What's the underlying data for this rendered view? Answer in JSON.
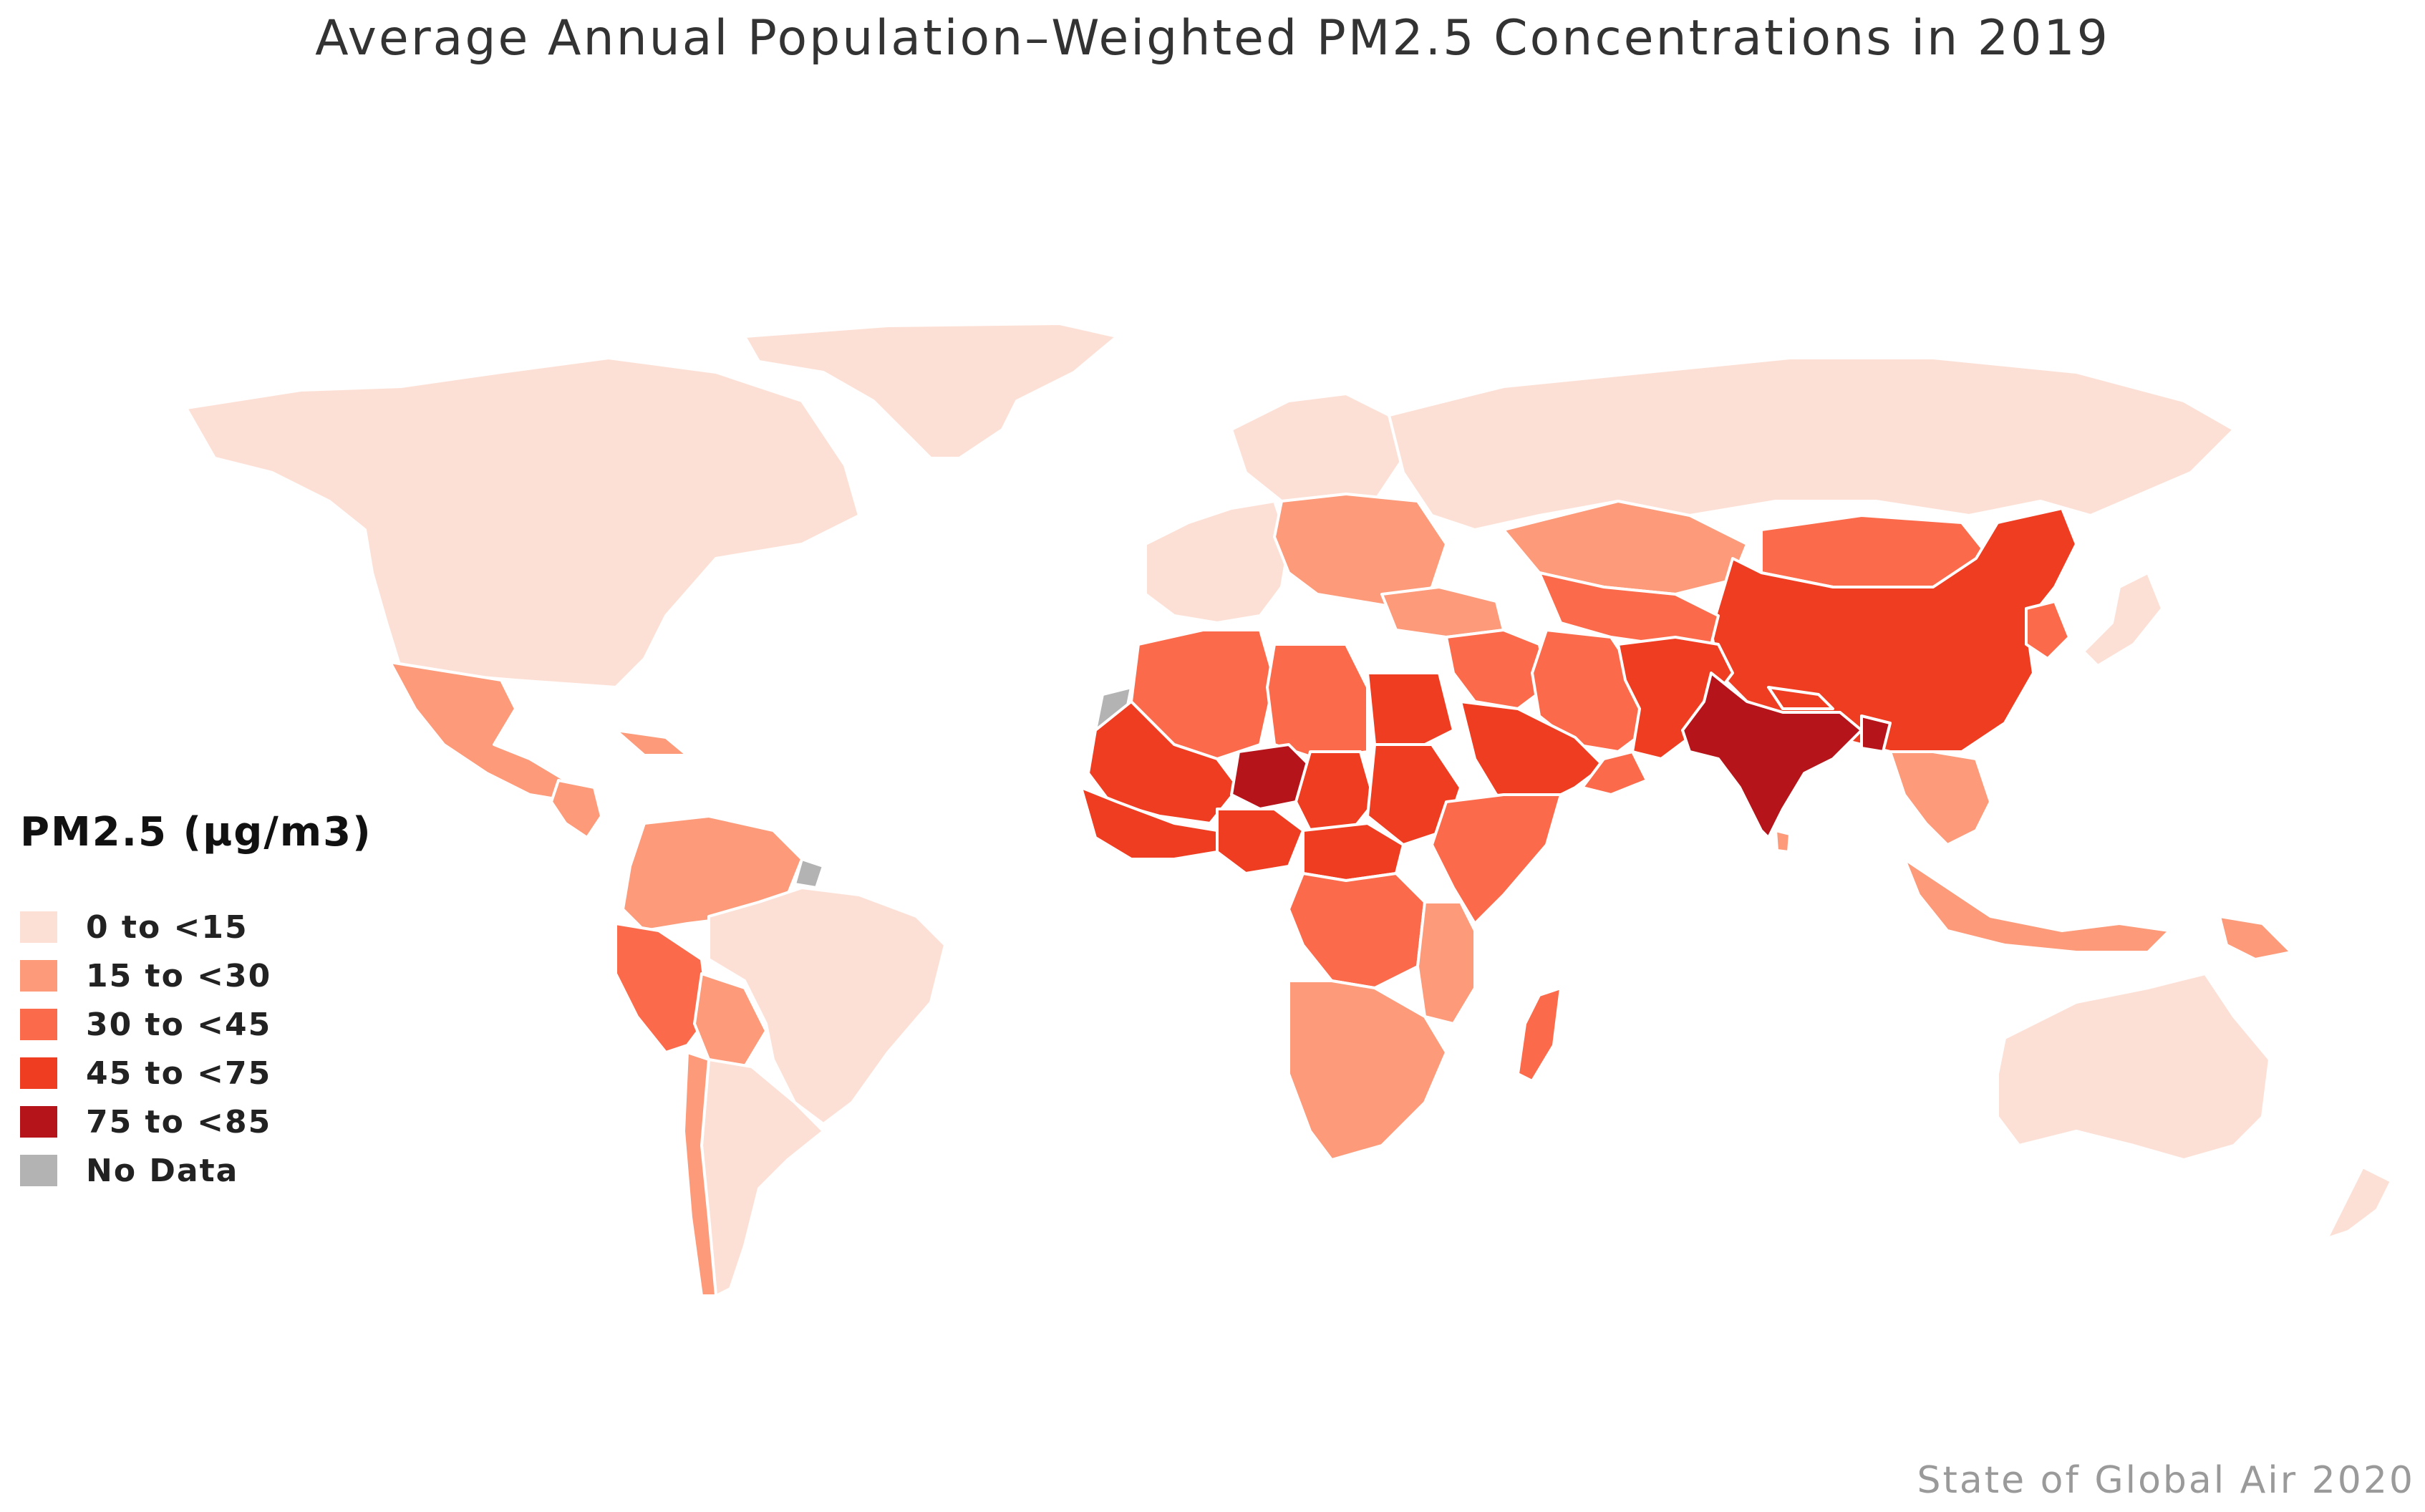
{
  "title": "Average Annual Population–Weighted PM2.5 Concentrations in 2019",
  "legend": {
    "title": "PM2.5 (µg/m3)",
    "items": [
      {
        "label": "0 to <15",
        "color": "#fde0d5"
      },
      {
        "label": "15 to <30",
        "color": "#fc9a7a"
      },
      {
        "label": "30 to <45",
        "color": "#fb6b4b"
      },
      {
        "label": "45 to <75",
        "color": "#ef3d22"
      },
      {
        "label": "75 to <85",
        "color": "#b5151a"
      },
      {
        "label": "No Data",
        "color": "#b3b3b3"
      }
    ]
  },
  "credit": "State of Global Air 2020",
  "map_regions": [
    {
      "name": "greenland",
      "class": "0 to <15"
    },
    {
      "name": "north-america",
      "class": "0 to <15"
    },
    {
      "name": "mexico",
      "class": "15 to <30"
    },
    {
      "name": "central-america",
      "class": "15 to <30"
    },
    {
      "name": "caribbean",
      "class": "15 to <30"
    },
    {
      "name": "northern-south-america",
      "class": "15 to <30"
    },
    {
      "name": "french-guiana",
      "class": "No Data"
    },
    {
      "name": "peru",
      "class": "30 to <45"
    },
    {
      "name": "bolivia",
      "class": "15 to <30"
    },
    {
      "name": "brazil",
      "class": "0 to <15"
    },
    {
      "name": "southern-cone",
      "class": "0 to <15"
    },
    {
      "name": "chile",
      "class": "15 to <30"
    },
    {
      "name": "western-europe",
      "class": "0 to <15"
    },
    {
      "name": "scandinavia",
      "class": "0 to <15"
    },
    {
      "name": "eastern-europe",
      "class": "15 to <30"
    },
    {
      "name": "russia",
      "class": "0 to <15"
    },
    {
      "name": "turkey",
      "class": "15 to <30"
    },
    {
      "name": "kazakhstan",
      "class": "15 to <30"
    },
    {
      "name": "mongolia",
      "class": "30 to <45"
    },
    {
      "name": "china",
      "class": "45 to <75"
    },
    {
      "name": "japan",
      "class": "0 to <15"
    },
    {
      "name": "korea",
      "class": "30 to <45"
    },
    {
      "name": "central-asia",
      "class": "30 to <45"
    },
    {
      "name": "iran",
      "class": "30 to <45"
    },
    {
      "name": "afghanistan-pakistan",
      "class": "45 to <75"
    },
    {
      "name": "india",
      "class": "75 to <85"
    },
    {
      "name": "bangladesh",
      "class": "75 to <85"
    },
    {
      "name": "nepal",
      "class": "45 to <75"
    },
    {
      "name": "sri-lanka",
      "class": "15 to <30"
    },
    {
      "name": "southeast-asia",
      "class": "15 to <30"
    },
    {
      "name": "indonesia",
      "class": "15 to <30"
    },
    {
      "name": "papua-new-guinea",
      "class": "15 to <30"
    },
    {
      "name": "australia",
      "class": "0 to <15"
    },
    {
      "name": "new-zealand",
      "class": "0 to <15"
    },
    {
      "name": "middle-east-levant",
      "class": "30 to <45"
    },
    {
      "name": "arabian-peninsula",
      "class": "45 to <75"
    },
    {
      "name": "oman",
      "class": "30 to <45"
    },
    {
      "name": "western-sahara",
      "class": "No Data"
    },
    {
      "name": "north-africa-west",
      "class": "30 to <45"
    },
    {
      "name": "libya",
      "class": "30 to <45"
    },
    {
      "name": "egypt",
      "class": "45 to <75"
    },
    {
      "name": "mauritania-mali",
      "class": "45 to <75"
    },
    {
      "name": "niger",
      "class": "75 to <85"
    },
    {
      "name": "chad",
      "class": "45 to <75"
    },
    {
      "name": "sudan",
      "class": "45 to <75"
    },
    {
      "name": "west-africa-coast",
      "class": "45 to <75"
    },
    {
      "name": "nigeria",
      "class": "45 to <75"
    },
    {
      "name": "central-africa",
      "class": "45 to <75"
    },
    {
      "name": "horn-of-africa",
      "class": "30 to <45"
    },
    {
      "name": "congo",
      "class": "30 to <45"
    },
    {
      "name": "east-africa",
      "class": "15 to <30"
    },
    {
      "name": "southern-africa",
      "class": "15 to <30"
    },
    {
      "name": "madagascar",
      "class": "30 to <45"
    }
  ]
}
